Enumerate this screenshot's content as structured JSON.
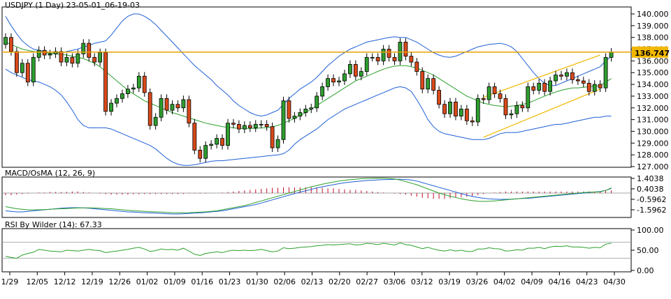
{
  "chart_data": [
    {
      "type": "candlestick",
      "title": "USDJPY (1 Day) 23-05-01_06-19-03",
      "ylim": [
        127.0,
        140.25
      ],
      "y_ticks": [
        "140.000",
        "139.000",
        "138.000",
        "137.000",
        "136.000",
        "135.000",
        "134.000",
        "133.000",
        "132.000",
        "131.000",
        "130.000",
        "129.000",
        "128.000",
        "127.000"
      ],
      "x_ticks": [
        "1/29",
        "12/05",
        "12/12",
        "12/19",
        "12/26",
        "01/02",
        "01/09",
        "01/16",
        "01/23",
        "01/30",
        "02/06",
        "02/13",
        "02/20",
        "02/27",
        "03/06",
        "03/12",
        "03/19",
        "03/26",
        "04/02",
        "04/09",
        "04/16",
        "04/23",
        "04/30"
      ],
      "horizontal_line": 136.747,
      "current_price_label": "136.747",
      "closes": [
        138.0,
        136.8,
        135.0,
        135.8,
        134.2,
        136.3,
        136.9,
        136.5,
        136.6,
        136.8,
        135.9,
        136.3,
        135.8,
        136.6,
        137.5,
        136.3,
        135.9,
        136.7,
        131.7,
        132.4,
        132.8,
        133.2,
        133.6,
        133.7,
        134.7,
        133.3,
        130.5,
        131.2,
        132.8,
        131.8,
        132.3,
        132.0,
        132.7,
        130.7,
        128.4,
        127.7,
        128.8,
        128.9,
        129.4,
        128.8,
        130.7,
        130.6,
        130.2,
        130.5,
        130.3,
        130.6,
        130.6,
        130.4,
        128.6,
        129.3,
        132.6,
        131.1,
        131.3,
        131.6,
        131.9,
        132.0,
        133.0,
        133.8,
        134.5,
        134.2,
        134.3,
        134.9,
        135.7,
        134.7,
        135.1,
        136.3,
        136.3,
        136.0,
        137.0,
        136.3,
        136.0,
        137.6,
        136.4,
        135.9,
        135.1,
        133.6,
        134.5,
        133.5,
        132.3,
        131.5,
        132.5,
        131.3,
        131.9,
        130.9,
        130.8,
        132.8,
        132.7,
        133.8,
        133.2,
        132.8,
        131.4,
        131.5,
        132.2,
        132.0,
        133.8,
        133.5,
        134.1,
        133.4,
        134.3,
        134.8,
        134.7,
        135.0,
        134.4,
        134.3,
        134.1,
        133.4,
        134.0,
        133.7,
        136.3,
        136.747
      ],
      "bollinger_upper": [
        139.8,
        139.0,
        138.3,
        137.7,
        137.3,
        137.0,
        136.9,
        136.8,
        136.75,
        136.7,
        136.7,
        136.8,
        136.9,
        137.0,
        137.2,
        137.3,
        137.5,
        137.6,
        137.7,
        138.2,
        138.8,
        139.4,
        139.8,
        140.0,
        140.0,
        139.8,
        139.5,
        139.1,
        138.6,
        138.1,
        137.6,
        137.1,
        136.6,
        136.1,
        135.6,
        135.2,
        134.8,
        134.4,
        133.9,
        133.5,
        133.1,
        132.6,
        132.2,
        131.9,
        131.6,
        131.4,
        131.3,
        131.4,
        131.6,
        131.8,
        132.3,
        132.8,
        133.2,
        133.6,
        133.9,
        134.2,
        134.6,
        135.1,
        135.6,
        136.0,
        136.4,
        136.7,
        137.0,
        137.2,
        137.4,
        137.6,
        137.7,
        137.8,
        137.9,
        138.0,
        138.05,
        138.0,
        138.0,
        137.8,
        137.6,
        137.3,
        137.0,
        136.7,
        136.5,
        136.35,
        136.3,
        136.4,
        136.6,
        136.8,
        137.0,
        137.2,
        137.3,
        137.4,
        137.45,
        137.5,
        137.4,
        137.2,
        136.8,
        136.2,
        135.6,
        135.0,
        134.5,
        134.1,
        133.9,
        133.9,
        134.1,
        134.3,
        134.5,
        134.7,
        134.9,
        135.1,
        135.3,
        135.5,
        136.0,
        136.4
      ],
      "bollinger_mid": [
        137.6,
        137.4,
        137.2,
        137.0,
        136.9,
        136.8,
        136.75,
        136.7,
        136.65,
        136.6,
        136.55,
        136.5,
        136.4,
        136.3,
        136.2,
        136.0,
        135.8,
        135.5,
        135.1,
        134.7,
        134.3,
        133.9,
        133.5,
        133.2,
        132.9,
        132.6,
        132.4,
        132.2,
        132.0,
        131.8,
        131.6,
        131.45,
        131.3,
        131.15,
        131.0,
        130.85,
        130.7,
        130.6,
        130.5,
        130.4,
        130.35,
        130.3,
        130.25,
        130.25,
        130.25,
        130.25,
        130.3,
        130.3,
        130.4,
        130.5,
        130.7,
        130.9,
        131.1,
        131.35,
        131.6,
        131.9,
        132.2,
        132.5,
        132.8,
        133.1,
        133.4,
        133.7,
        134.0,
        134.3,
        134.5,
        134.7,
        134.9,
        135.1,
        135.3,
        135.45,
        135.55,
        135.6,
        135.6,
        135.5,
        135.4,
        135.2,
        135.0,
        134.8,
        134.5,
        134.2,
        133.9,
        133.6,
        133.3,
        133.0,
        132.8,
        132.6,
        132.4,
        132.3,
        132.2,
        132.15,
        132.1,
        132.15,
        132.2,
        132.3,
        132.4,
        132.6,
        132.8,
        133.0,
        133.2,
        133.35,
        133.5,
        133.6,
        133.7,
        133.7,
        133.75,
        133.8,
        133.85,
        133.9,
        134.2,
        134.5
      ],
      "bollinger_lower": [
        135.3,
        135.0,
        134.8,
        134.6,
        134.4,
        134.3,
        134.2,
        134.0,
        133.8,
        133.5,
        133.1,
        132.5,
        131.8,
        131.0,
        130.5,
        130.3,
        130.3,
        130.3,
        130.3,
        130.2,
        130.0,
        129.8,
        129.6,
        129.4,
        129.2,
        129.0,
        128.8,
        128.5,
        128.1,
        127.7,
        127.4,
        127.2,
        127.1,
        127.1,
        127.15,
        127.25,
        127.35,
        127.45,
        127.5,
        127.5,
        127.55,
        127.6,
        127.65,
        127.7,
        127.75,
        127.8,
        127.85,
        127.9,
        127.95,
        128.0,
        128.1,
        128.4,
        128.9,
        129.3,
        129.6,
        129.9,
        130.2,
        130.6,
        131.0,
        131.3,
        131.6,
        131.9,
        132.1,
        132.3,
        132.5,
        132.7,
        132.9,
        133.1,
        133.3,
        133.5,
        133.7,
        133.8,
        133.7,
        133.4,
        132.7,
        131.9,
        131.0,
        130.4,
        130.0,
        129.8,
        129.7,
        129.6,
        129.5,
        129.4,
        129.3,
        129.3,
        129.3,
        129.4,
        129.6,
        129.8,
        129.9,
        129.9,
        129.9,
        130.0,
        130.1,
        130.2,
        130.3,
        130.4,
        130.5,
        130.6,
        130.6,
        130.7,
        130.8,
        130.9,
        131.0,
        131.1,
        131.2,
        131.2,
        131.3,
        131.3
      ],
      "trend_channel": {
        "upper": [
          [
            86,
            132.9
          ],
          [
            107,
            136.5
          ]
        ],
        "lower": [
          [
            86,
            129.5
          ],
          [
            107,
            133.6
          ]
        ]
      }
    },
    {
      "type": "macd",
      "title": "MACD/OsMA (12, 26, 9)",
      "y_ticks": [
        "1.4038",
        "0.4038",
        "-0.5962",
        "-1.5962"
      ],
      "ylim": [
        -2.2,
        1.4
      ],
      "macd": [
        -1.7,
        -1.75,
        -1.8,
        -1.8,
        -1.75,
        -1.7,
        -1.65,
        -1.6,
        -1.55,
        -1.5,
        -1.45,
        -1.42,
        -1.4,
        -1.4,
        -1.42,
        -1.45,
        -1.5,
        -1.55,
        -1.6,
        -1.65,
        -1.7,
        -1.75,
        -1.8,
        -1.82,
        -1.85,
        -1.88,
        -1.9,
        -1.92,
        -1.95,
        -1.97,
        -2.0,
        -2.0,
        -1.98,
        -1.95,
        -1.92,
        -1.9,
        -1.85,
        -1.8,
        -1.75,
        -1.7,
        -1.6,
        -1.5,
        -1.4,
        -1.3,
        -1.2,
        -1.1,
        -0.95,
        -0.8,
        -0.65,
        -0.5,
        -0.35,
        -0.2,
        -0.05,
        0.1,
        0.22,
        0.35,
        0.5,
        0.6,
        0.7,
        0.8,
        0.9,
        0.98,
        1.05,
        1.1,
        1.15,
        1.2,
        1.23,
        1.26,
        1.28,
        1.3,
        1.32,
        1.32,
        1.3,
        1.25,
        1.15,
        1.0,
        0.85,
        0.7,
        0.55,
        0.4,
        0.25,
        0.1,
        -0.05,
        -0.2,
        -0.32,
        -0.42,
        -0.5,
        -0.55,
        -0.58,
        -0.6,
        -0.6,
        -0.58,
        -0.55,
        -0.52,
        -0.5,
        -0.45,
        -0.4,
        -0.35,
        -0.3,
        -0.25,
        -0.2,
        -0.15,
        -0.1,
        -0.05,
        0.0,
        0.05,
        0.1,
        0.15,
        0.25,
        0.45
      ],
      "signal": [
        -1.3,
        -1.4,
        -1.5,
        -1.55,
        -1.6,
        -1.6,
        -1.6,
        -1.58,
        -1.55,
        -1.52,
        -1.5,
        -1.48,
        -1.45,
        -1.43,
        -1.42,
        -1.42,
        -1.43,
        -1.45,
        -1.48,
        -1.5,
        -1.55,
        -1.6,
        -1.65,
        -1.7,
        -1.72,
        -1.75,
        -1.78,
        -1.8,
        -1.82,
        -1.85,
        -1.87,
        -1.88,
        -1.88,
        -1.87,
        -1.85,
        -1.82,
        -1.8,
        -1.75,
        -1.7,
        -1.6,
        -1.5,
        -1.4,
        -1.3,
        -1.2,
        -1.05,
        -0.9,
        -0.75,
        -0.6,
        -0.45,
        -0.3,
        -0.15,
        0.0,
        0.15,
        0.3,
        0.45,
        0.6,
        0.72,
        0.85,
        0.95,
        1.05,
        1.15,
        1.22,
        1.28,
        1.33,
        1.37,
        1.4,
        1.42,
        1.43,
        1.42,
        1.4,
        1.35,
        1.25,
        1.1,
        0.95,
        0.8,
        0.6,
        0.4,
        0.2,
        0.0,
        -0.15,
        -0.3,
        -0.42,
        -0.55,
        -0.65,
        -0.72,
        -0.78,
        -0.8,
        -0.78,
        -0.75,
        -0.7,
        -0.65,
        -0.6,
        -0.55,
        -0.5,
        -0.45,
        -0.4,
        -0.35,
        -0.3,
        -0.25,
        -0.2,
        -0.15,
        -0.1,
        -0.05,
        0.0,
        0.05,
        0.08,
        0.1,
        0.12,
        0.25,
        0.5
      ],
      "histogram": [
        -0.2,
        -0.2,
        -0.15,
        -0.1,
        -0.05,
        0.0,
        0.05,
        0.05,
        0.1,
        0.1,
        0.1,
        0.12,
        0.15,
        0.15,
        0.1,
        0.05,
        0.0,
        -0.05,
        -0.1,
        -0.15,
        -0.15,
        -0.15,
        -0.15,
        -0.12,
        -0.12,
        -0.1,
        -0.1,
        -0.1,
        -0.1,
        -0.1,
        -0.1,
        -0.1,
        -0.08,
        -0.05,
        -0.05,
        -0.05,
        -0.05,
        -0.02,
        0.0,
        0.05,
        0.1,
        0.15,
        0.2,
        0.25,
        0.3,
        0.35,
        0.4,
        0.45,
        0.5,
        0.5,
        0.55,
        0.55,
        0.55,
        0.55,
        0.55,
        0.55,
        0.5,
        0.5,
        0.45,
        0.45,
        0.4,
        0.35,
        0.3,
        0.3,
        0.25,
        0.2,
        0.15,
        0.1,
        0.05,
        0.0,
        -0.05,
        -0.1,
        -0.15,
        -0.25,
        -0.35,
        -0.45,
        -0.5,
        -0.55,
        -0.55,
        -0.55,
        -0.5,
        -0.45,
        -0.4,
        -0.35,
        -0.3,
        -0.2,
        -0.1,
        0.0,
        0.05,
        0.1,
        0.15,
        0.15,
        0.15,
        0.15,
        0.15,
        0.15,
        0.15,
        0.15,
        0.15,
        0.15,
        0.15,
        0.15,
        0.15,
        0.15,
        0.15,
        0.15,
        0.15,
        0.15,
        0.2,
        0.25
      ]
    },
    {
      "type": "line",
      "title": "RSI By Wilder (14): 67.33",
      "y_ticks": [
        "100.00",
        "50.00",
        "0.00"
      ],
      "ylim": [
        0,
        100
      ],
      "levels": [
        70,
        30
      ],
      "rsi": [
        35,
        32,
        30,
        38,
        42,
        45,
        52,
        50,
        48,
        47,
        46,
        50,
        49,
        48,
        50,
        52,
        50,
        49,
        44,
        46,
        48,
        50,
        52,
        55,
        57,
        53,
        47,
        49,
        53,
        51,
        52,
        50,
        55,
        48,
        40,
        37,
        42,
        44,
        46,
        44,
        48,
        50,
        49,
        50,
        49,
        50,
        52,
        49,
        46,
        48,
        56,
        54,
        55,
        57,
        58,
        59,
        61,
        62,
        64,
        63,
        64,
        65,
        66,
        63,
        64,
        67,
        66,
        64,
        67,
        65,
        63,
        68,
        64,
        62,
        58,
        54,
        57,
        53,
        50,
        48,
        51,
        48,
        50,
        47,
        47,
        53,
        53,
        56,
        54,
        53,
        48,
        49,
        51,
        50,
        55,
        55,
        57,
        54,
        58,
        60,
        59,
        61,
        58,
        58,
        57,
        55,
        57,
        56,
        65,
        67.33
      ]
    }
  ]
}
